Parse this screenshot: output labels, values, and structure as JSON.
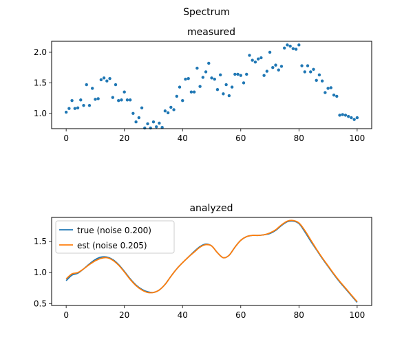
{
  "suptitle": "Spectrum",
  "colors": {
    "scatter": "#1f77b4",
    "true_line": "#1f77b4",
    "est_line": "#ff7f0e",
    "axes": "#000000"
  },
  "chart_data": [
    {
      "type": "scatter",
      "title": "measured",
      "xlabel": "",
      "ylabel": "",
      "xlim": [
        -5,
        105
      ],
      "ylim": [
        0.75,
        2.18
      ],
      "xticks": [
        0,
        20,
        40,
        60,
        80,
        100
      ],
      "xtick_labels": [
        "0",
        "20",
        "40",
        "60",
        "80",
        "100"
      ],
      "yticks": [
        1.0,
        1.5,
        2.0
      ],
      "ytick_labels": [
        "1.0",
        "1.5",
        "2.0"
      ],
      "grid": false,
      "series": [
        {
          "x": [
            0,
            1,
            2,
            3,
            4,
            5,
            6,
            7,
            8,
            9,
            10,
            11,
            12,
            13,
            14,
            15,
            16,
            17,
            18,
            19,
            20,
            21,
            22,
            23,
            24,
            25,
            26,
            27,
            28,
            29,
            30,
            31,
            32,
            33,
            34,
            35,
            36,
            37,
            38,
            39,
            40,
            41,
            42,
            43,
            44,
            45,
            46,
            47,
            48,
            49,
            50,
            51,
            52,
            53,
            54,
            55,
            56,
            57,
            58,
            59,
            60,
            61,
            62,
            63,
            64,
            65,
            66,
            67,
            68,
            69,
            70,
            71,
            72,
            73,
            74,
            75,
            76,
            77,
            78,
            79,
            80,
            81,
            82,
            83,
            84,
            85,
            86,
            87,
            88,
            89,
            90,
            91,
            92,
            93,
            94,
            95,
            96,
            97,
            98,
            99,
            100
          ],
          "y": [
            1.02,
            1.08,
            1.21,
            1.08,
            1.09,
            1.22,
            1.13,
            1.47,
            1.13,
            1.41,
            1.23,
            1.24,
            1.55,
            1.58,
            1.53,
            1.57,
            1.26,
            1.47,
            1.21,
            1.22,
            1.35,
            1.22,
            1.22,
            1.0,
            0.86,
            0.93,
            1.09,
            0.76,
            0.83,
            0.76,
            0.86,
            0.78,
            0.84,
            0.77,
            1.04,
            1.01,
            1.1,
            1.06,
            1.28,
            1.43,
            1.21,
            1.56,
            1.57,
            1.35,
            1.35,
            1.74,
            1.44,
            1.59,
            1.68,
            1.82,
            1.58,
            1.56,
            1.39,
            1.63,
            1.32,
            1.47,
            1.29,
            1.43,
            1.64,
            1.64,
            1.62,
            1.5,
            1.64,
            1.95,
            1.87,
            1.84,
            1.89,
            1.91,
            1.62,
            1.69,
            2.0,
            1.75,
            1.79,
            1.71,
            1.77,
            2.07,
            2.12,
            2.1,
            2.06,
            2.05,
            2.12,
            1.78,
            1.68,
            1.78,
            1.68,
            1.72,
            1.54,
            1.63,
            1.53,
            1.34,
            1.41,
            1.42,
            1.3,
            1.28,
            0.97,
            0.98,
            0.97,
            0.95,
            0.93,
            0.9,
            0.93
          ]
        }
      ]
    },
    {
      "type": "line",
      "title": "analyzed",
      "xlabel": "",
      "ylabel": "",
      "xlim": [
        -5,
        105
      ],
      "ylim": [
        0.47,
        1.89
      ],
      "xticks": [
        0,
        20,
        40,
        60,
        80,
        100
      ],
      "xtick_labels": [
        "0",
        "20",
        "40",
        "60",
        "80",
        "100"
      ],
      "yticks": [
        0.5,
        1.0,
        1.5
      ],
      "ytick_labels": [
        "0.5",
        "1.0",
        "1.5"
      ],
      "grid": false,
      "legend_position": "upper-left",
      "series": [
        {
          "name": "true (noise 0.200)",
          "x": [
            0,
            2,
            4,
            6,
            8,
            10,
            12,
            14,
            16,
            18,
            20,
            22,
            24,
            26,
            28,
            30,
            32,
            34,
            36,
            38,
            40,
            42,
            44,
            46,
            48,
            50,
            52,
            54,
            56,
            58,
            60,
            62,
            64,
            66,
            68,
            70,
            72,
            74,
            76,
            78,
            80,
            82,
            84,
            86,
            88,
            90,
            92,
            94,
            96,
            98,
            100
          ],
          "y": [
            0.87,
            0.96,
            0.99,
            1.06,
            1.14,
            1.21,
            1.25,
            1.25,
            1.21,
            1.13,
            1.02,
            0.9,
            0.8,
            0.73,
            0.69,
            0.68,
            0.72,
            0.81,
            0.94,
            1.06,
            1.16,
            1.25,
            1.34,
            1.42,
            1.46,
            1.43,
            1.32,
            1.24,
            1.28,
            1.41,
            1.52,
            1.58,
            1.6,
            1.6,
            1.61,
            1.63,
            1.68,
            1.76,
            1.82,
            1.83,
            1.79,
            1.66,
            1.51,
            1.37,
            1.23,
            1.1,
            0.97,
            0.85,
            0.74,
            0.63,
            0.52
          ]
        },
        {
          "name": "est (noise 0.205)",
          "x": [
            0,
            2,
            4,
            6,
            8,
            10,
            12,
            14,
            16,
            18,
            20,
            22,
            24,
            26,
            28,
            30,
            32,
            34,
            36,
            38,
            40,
            42,
            44,
            46,
            48,
            50,
            52,
            54,
            56,
            58,
            60,
            62,
            64,
            66,
            68,
            70,
            72,
            74,
            76,
            78,
            80,
            82,
            84,
            86,
            88,
            90,
            92,
            94,
            96,
            98,
            100
          ],
          "y": [
            0.9,
            0.98,
            1.0,
            1.06,
            1.13,
            1.19,
            1.23,
            1.24,
            1.2,
            1.12,
            1.01,
            0.89,
            0.79,
            0.72,
            0.68,
            0.68,
            0.72,
            0.81,
            0.94,
            1.06,
            1.16,
            1.25,
            1.33,
            1.41,
            1.45,
            1.43,
            1.32,
            1.24,
            1.28,
            1.41,
            1.52,
            1.58,
            1.6,
            1.6,
            1.61,
            1.64,
            1.69,
            1.77,
            1.83,
            1.84,
            1.8,
            1.68,
            1.53,
            1.38,
            1.24,
            1.11,
            0.98,
            0.86,
            0.75,
            0.64,
            0.53
          ]
        }
      ]
    }
  ]
}
